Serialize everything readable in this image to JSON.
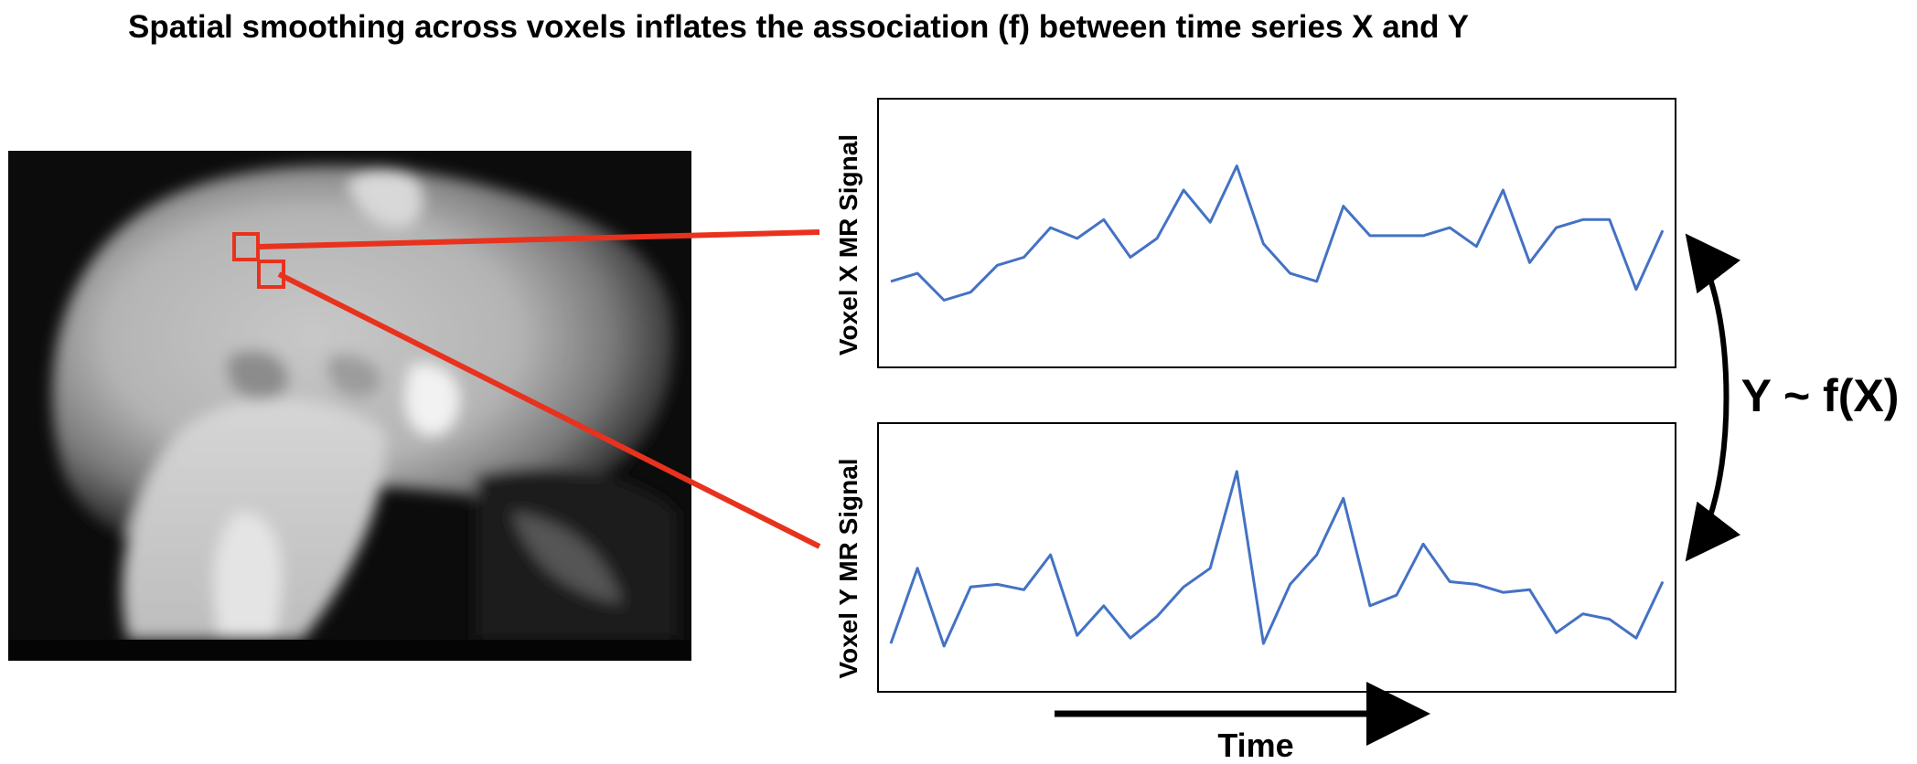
{
  "title": "Spatial smoothing across voxels inflates the association (f) between time series X and Y",
  "labels": {
    "voxel_x_ylabel": "Voxel X MR Signal",
    "voxel_y_ylabel": "Voxel Y MR Signal",
    "time_label": "Time",
    "relation": "Y ~ f(X)"
  },
  "colors": {
    "series_line": "#4472C4",
    "callout": "#E8321E",
    "axis": "#000000"
  },
  "chart_data": [
    {
      "type": "line",
      "ylabel": "Voxel X MR Signal",
      "xlabel": "",
      "x": [
        1,
        2,
        3,
        4,
        5,
        6,
        7,
        8,
        9,
        10,
        11,
        12,
        13,
        14,
        15,
        16,
        17,
        18,
        19,
        20,
        21,
        22,
        23,
        24,
        25,
        26,
        27,
        28,
        29,
        30
      ],
      "series": [
        {
          "values": [
            0.32,
            0.35,
            0.25,
            0.28,
            0.38,
            0.41,
            0.52,
            0.48,
            0.55,
            0.41,
            0.48,
            0.66,
            0.54,
            0.75,
            0.46,
            0.35,
            0.32,
            0.6,
            0.49,
            0.49,
            0.49,
            0.52,
            0.45,
            0.66,
            0.39,
            0.52,
            0.55,
            0.55,
            0.29,
            0.51
          ]
        }
      ]
    },
    {
      "type": "line",
      "ylabel": "Voxel Y MR Signal",
      "xlabel": "Time",
      "x": [
        1,
        2,
        3,
        4,
        5,
        6,
        7,
        8,
        9,
        10,
        11,
        12,
        13,
        14,
        15,
        16,
        17,
        18,
        19,
        20,
        21,
        22,
        23,
        24,
        25,
        26,
        27,
        28,
        29,
        30
      ],
      "series": [
        {
          "values": [
            0.18,
            0.46,
            0.17,
            0.39,
            0.4,
            0.38,
            0.51,
            0.21,
            0.32,
            0.2,
            0.28,
            0.39,
            0.46,
            0.82,
            0.18,
            0.4,
            0.51,
            0.72,
            0.32,
            0.36,
            0.55,
            0.41,
            0.4,
            0.37,
            0.38,
            0.22,
            0.29,
            0.27,
            0.2,
            0.41
          ]
        }
      ]
    }
  ]
}
